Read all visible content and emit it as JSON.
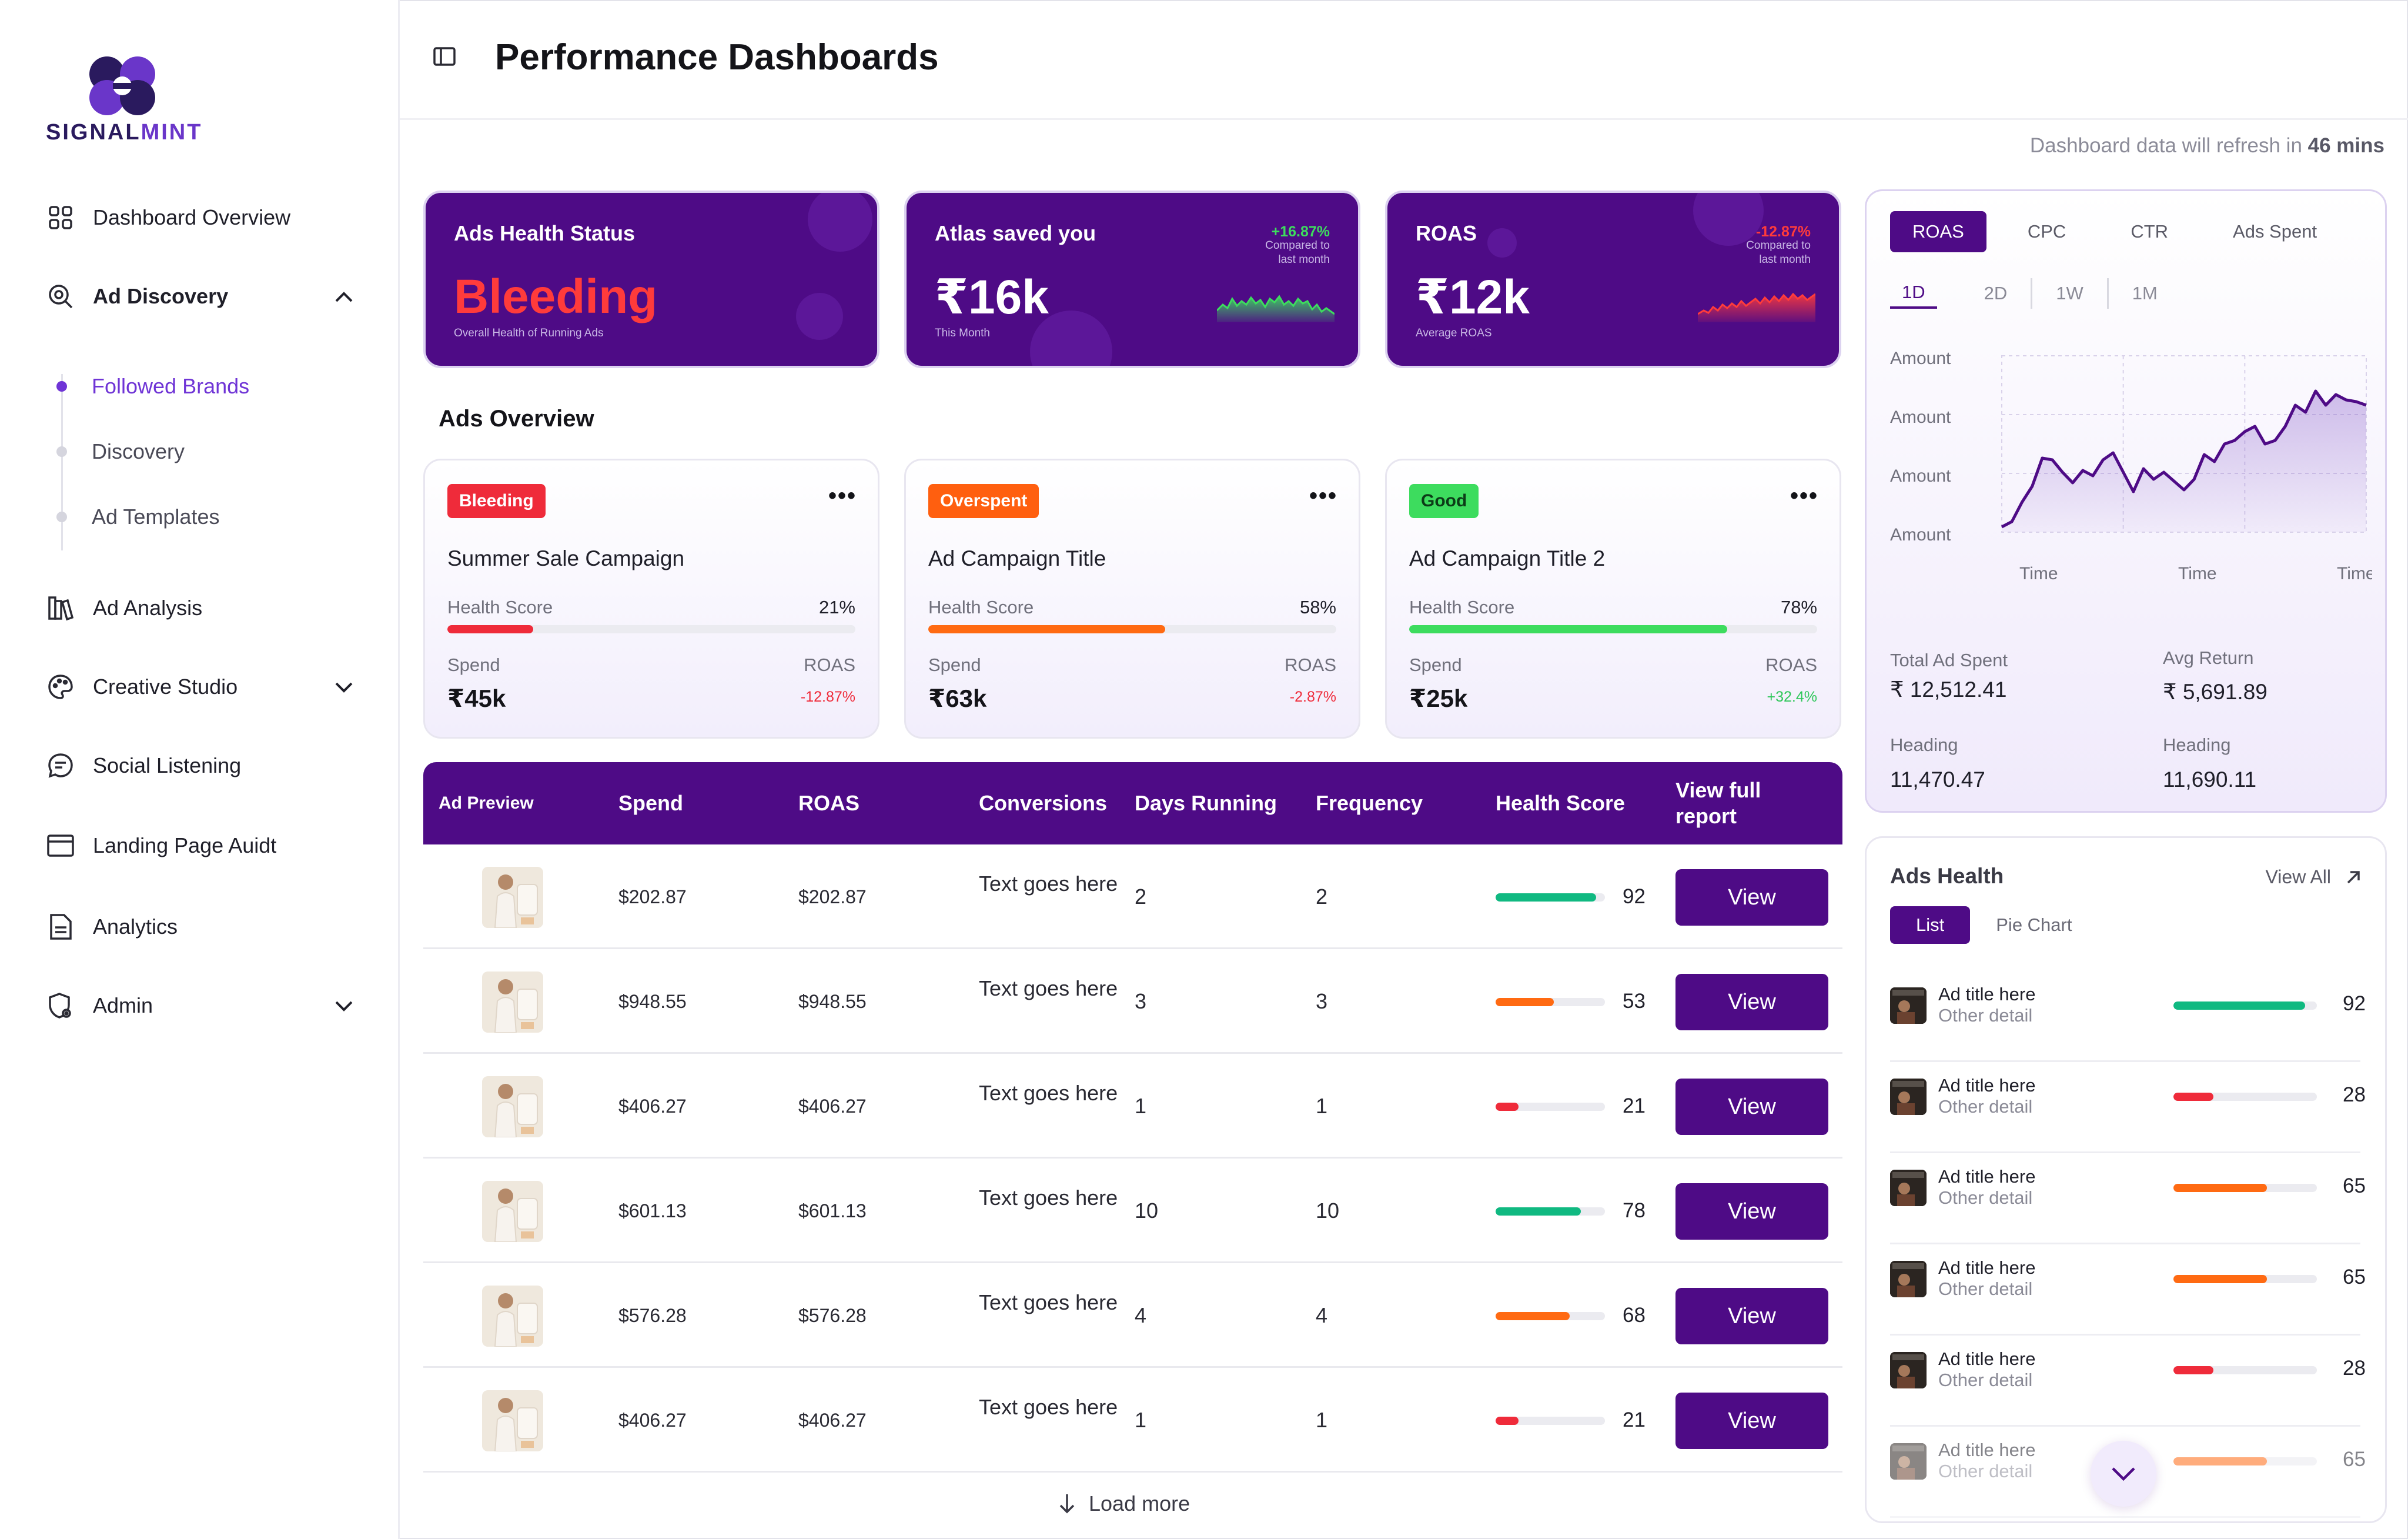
{
  "brand": {
    "name_part1": "SIGNAL",
    "name_part2": "MINT"
  },
  "sidebar": {
    "items": [
      {
        "label": "Dashboard Overview",
        "icon": "grid-icon"
      },
      {
        "label": "Ad Discovery",
        "icon": "search-icon",
        "expanded": true
      },
      {
        "label": "Ad Analysis",
        "icon": "books-icon"
      },
      {
        "label": "Creative Studio",
        "icon": "palette-icon"
      },
      {
        "label": "Social Listening",
        "icon": "chat-icon"
      },
      {
        "label": "Landing Page Auidt",
        "icon": "browser-icon"
      },
      {
        "label": "Analytics",
        "icon": "document-icon"
      },
      {
        "label": "Admin",
        "icon": "user-gear-icon"
      }
    ],
    "sub_items": [
      {
        "label": "Followed Brands",
        "active": true
      },
      {
        "label": "Discovery",
        "active": false
      },
      {
        "label": "Ad Templates",
        "active": false
      }
    ]
  },
  "header": {
    "title": "Performance Dashboards"
  },
  "refresh": {
    "prefix": "Dashboard data will refresh in",
    "value": "46 mins"
  },
  "stats": [
    {
      "label": "Ads Health Status",
      "value": "Bleeding",
      "caption": "Overall Health of Running Ads",
      "change": "",
      "compare": ""
    },
    {
      "label": "Atlas saved you",
      "value": "₹16k",
      "caption": "This Month",
      "change": "+16.87%",
      "compare": "Compared to last month"
    },
    {
      "label": "ROAS",
      "value": "₹12k",
      "caption": "Average ROAS",
      "change": "-12.87%",
      "compare": "Compared to last month"
    }
  ],
  "overview": {
    "title": "Ads Overview",
    "cards": [
      {
        "badge": "Bleeding",
        "badge_color": "#ef2b3a",
        "title": "Summer Sale Campaign",
        "health_label": "Health Score",
        "health": 21,
        "health_text": "21%",
        "bar_color": "#ef2b3a",
        "spend_label": "Spend",
        "spend": "₹45k",
        "roas_label": "ROAS",
        "roas": "-12.87%",
        "roas_color": "#ef2b3a"
      },
      {
        "badge": "Overspent",
        "badge_color": "#ff5f0f",
        "title": "Ad Campaign Title",
        "health_label": "Health Score",
        "health": 58,
        "health_text": "58%",
        "bar_color": "#ff6a12",
        "spend_label": "Spend",
        "spend": "₹63k",
        "roas_label": "ROAS",
        "roas": "-2.87%",
        "roas_color": "#ef2b3a"
      },
      {
        "badge": "Good",
        "badge_color": "#3ddc5e",
        "title": "Ad Campaign Title 2",
        "health_label": "Health Score",
        "health": 78,
        "health_text": "78%",
        "bar_color": "#3ddc5e",
        "spend_label": "Spend",
        "spend": "₹25k",
        "roas_label": "ROAS",
        "roas": "+32.4%",
        "roas_color": "#2fc75a"
      }
    ]
  },
  "table": {
    "headers": [
      "Ad Preview",
      "Spend",
      "ROAS",
      "Conversions",
      "Days Running",
      "Frequency",
      "Health Score",
      "View full report"
    ],
    "rows": [
      {
        "spend": "$202.87",
        "roas": "$202.87",
        "conversions": "Text goes here",
        "days": "2",
        "frequency": "2",
        "health": 92,
        "bar_color": "#10b981",
        "action": "View"
      },
      {
        "spend": "$948.55",
        "roas": "$948.55",
        "conversions": "Text goes here",
        "days": "3",
        "frequency": "3",
        "health": 53,
        "bar_color": "#ff6a12",
        "action": "View"
      },
      {
        "spend": "$406.27",
        "roas": "$406.27",
        "conversions": "Text goes here",
        "days": "1",
        "frequency": "1",
        "health": 21,
        "bar_color": "#ef2b3a",
        "action": "View"
      },
      {
        "spend": "$601.13",
        "roas": "$601.13",
        "conversions": "Text goes here",
        "days": "10",
        "frequency": "10",
        "health": 78,
        "bar_color": "#10b981",
        "action": "View"
      },
      {
        "spend": "$576.28",
        "roas": "$576.28",
        "conversions": "Text goes here",
        "days": "4",
        "frequency": "4",
        "health": 68,
        "bar_color": "#ff6a12",
        "action": "View"
      },
      {
        "spend": "$406.27",
        "roas": "$406.27",
        "conversions": "Text goes here",
        "days": "1",
        "frequency": "1",
        "health": 21,
        "bar_color": "#ef2b3a",
        "action": "View"
      }
    ],
    "load_more": "Load more"
  },
  "roas_panel": {
    "tabs": [
      "ROAS",
      "CPC",
      "CTR",
      "Ads Spent"
    ],
    "ranges": [
      "1D",
      "2D",
      "1W",
      "1M"
    ],
    "chart_data": {
      "type": "area",
      "y_tick_labels": [
        "Amount",
        "Amount",
        "Amount",
        "Amount"
      ],
      "x_tick_labels": [
        "Time",
        "Time",
        "Time"
      ],
      "values": [
        3,
        6,
        17,
        26,
        42,
        41,
        34,
        28,
        35,
        32,
        41,
        45,
        34,
        23,
        36,
        30,
        34,
        29,
        24,
        30,
        44,
        40,
        50,
        52,
        57,
        60,
        50,
        52,
        60,
        72,
        68,
        80,
        72,
        78,
        75,
        74,
        72
      ]
    },
    "stats": [
      {
        "label": "Total Ad Spent",
        "value": "₹ 12,512.41"
      },
      {
        "label": "Avg Return",
        "value": "₹ 5,691.89"
      },
      {
        "label": "Heading",
        "value": "11,470.47"
      },
      {
        "label": "Heading",
        "value": "11,690.11"
      }
    ]
  },
  "ads_health": {
    "title": "Ads Health",
    "view_all": "View All",
    "tabs": [
      "List",
      "Pie Chart"
    ],
    "rows": [
      {
        "title": "Ad title here",
        "detail": "Other detail",
        "value": 92,
        "color": "#10b981"
      },
      {
        "title": "Ad title here",
        "detail": "Other detail",
        "value": 28,
        "color": "#ef2b3a"
      },
      {
        "title": "Ad title here",
        "detail": "Other detail",
        "value": 65,
        "color": "#ff6a12"
      },
      {
        "title": "Ad title here",
        "detail": "Other detail",
        "value": 65,
        "color": "#ff6a12"
      },
      {
        "title": "Ad title here",
        "detail": "Other detail",
        "value": 28,
        "color": "#ef2b3a"
      },
      {
        "title": "Ad title here",
        "detail": "Other detail",
        "value": 65,
        "color": "#ff6a12"
      }
    ]
  },
  "colors": {
    "primary": "#4e0b86",
    "accent": "#6f34d6"
  }
}
